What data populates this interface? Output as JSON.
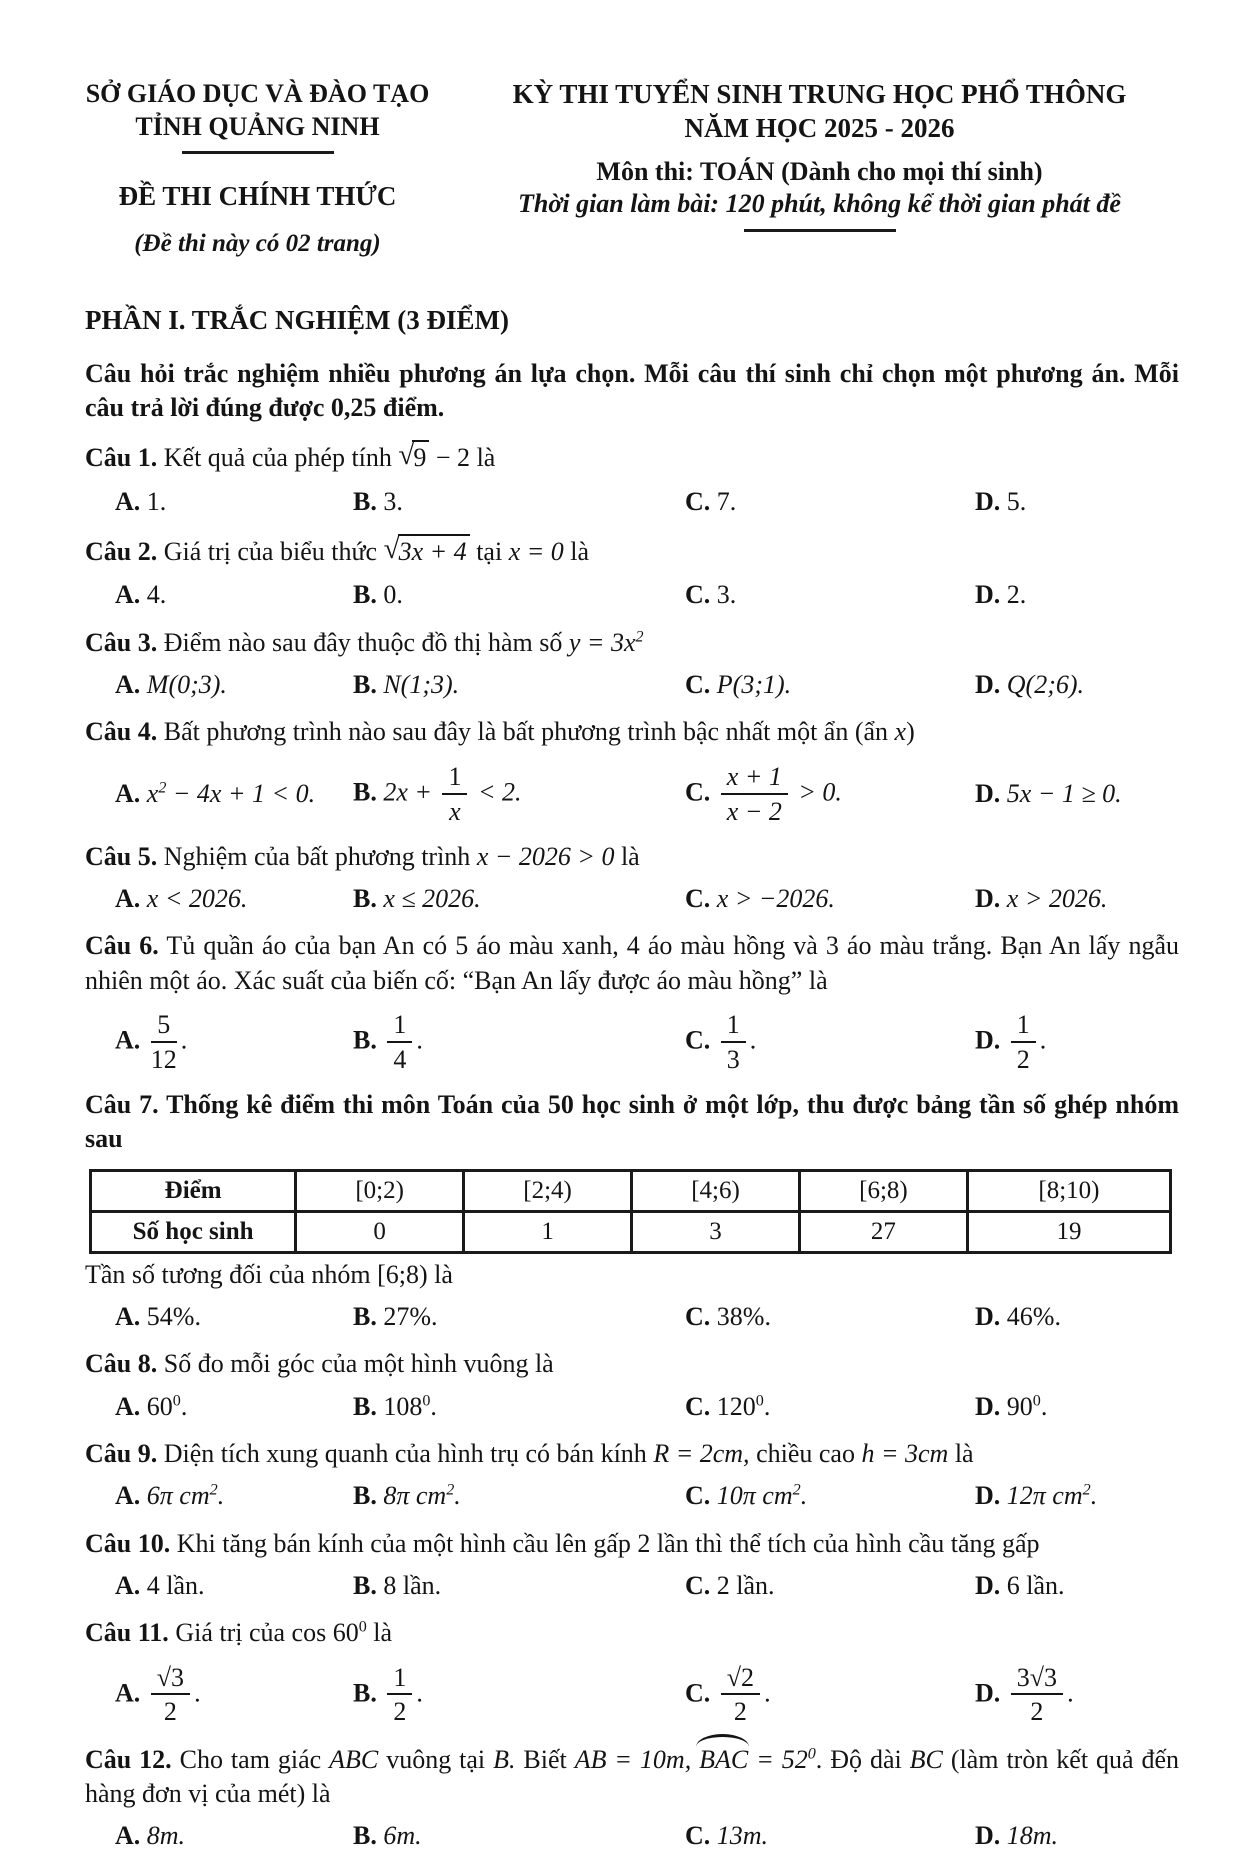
{
  "header": {
    "left": {
      "dept": "SỞ GIÁO DỤC VÀ ĐÀO TẠO",
      "province": "TỈNH QUẢNG NINH",
      "exam_type": "ĐỀ THI CHÍNH THỨC",
      "pages_note": "(Đề thi này có 02 trang)"
    },
    "right": {
      "exam_name": "KỲ THI TUYỂN SINH TRUNG HỌC PHỔ THÔNG",
      "year": "NĂM HỌC 2025 - 2026",
      "subject": "Môn thi: TOÁN (Dành cho mọi thí sinh)",
      "duration": "Thời gian làm bài: 120 phút, không kể thời gian phát đề"
    }
  },
  "section": {
    "title": "PHẦN I. TRẮC NGHIỆM (3 ĐIỂM)",
    "intro": "Câu hỏi trắc nghiệm nhiều phương án lựa chọn. Mỗi câu thí sinh chỉ chọn một phương án. Mỗi câu trả lời đúng được 0,25 điểm."
  },
  "q1": {
    "label": "Câu 1.",
    "t1": "Kết quả của phép tính",
    "rad": "9",
    "t2": "− 2",
    "t3": "là",
    "o": [
      {
        "k": "A.",
        "v": "1."
      },
      {
        "k": "B.",
        "v": "3."
      },
      {
        "k": "C.",
        "v": "7."
      },
      {
        "k": "D.",
        "v": "5."
      }
    ]
  },
  "q2": {
    "label": "Câu 2.",
    "t1": "Giá trị của biểu thức",
    "rad": "3x + 4",
    "t2": "tại",
    "m": "x = 0",
    "t3": "là",
    "o": [
      {
        "k": "A.",
        "v": "4."
      },
      {
        "k": "B.",
        "v": "0."
      },
      {
        "k": "C.",
        "v": "3."
      },
      {
        "k": "D.",
        "v": "2."
      }
    ]
  },
  "q3": {
    "label": "Câu 3.",
    "t1": "Điểm nào sau đây thuộc đồ thị hàm số",
    "m": "y = 3x",
    "sup": "2",
    "o": [
      {
        "k": "A.",
        "v": "M(0;3)."
      },
      {
        "k": "B.",
        "v": "N(1;3)."
      },
      {
        "k": "C.",
        "v": "P(3;1)."
      },
      {
        "k": "D.",
        "v": "Q(2;6)."
      }
    ]
  },
  "q4": {
    "label": "Câu 4.",
    "t1": "Bất phương trình nào sau đây là bất phương trình bậc nhất một ẩn (ẩn",
    "m": "x",
    "t2": ")",
    "o": [
      {
        "k": "A.",
        "pre": "x",
        "sup": "2",
        "post": " − 4x + 1 < 0."
      },
      {
        "k": "B.",
        "pre": "2x + ",
        "n": "1",
        "d": "x",
        "post": " < 2."
      },
      {
        "k": "C.",
        "n": "x + 1",
        "d": "x − 2",
        "post": " > 0."
      },
      {
        "k": "D.",
        "v": "5x − 1 ≥ 0."
      }
    ]
  },
  "q5": {
    "label": "Câu 5.",
    "t1": "Nghiệm của bất phương trình",
    "m": "x − 2026 > 0",
    "t2": "là",
    "o": [
      {
        "k": "A.",
        "v": "x < 2026."
      },
      {
        "k": "B.",
        "v": "x ≤ 2026."
      },
      {
        "k": "C.",
        "v": "x > −2026."
      },
      {
        "k": "D.",
        "v": "x > 2026."
      }
    ]
  },
  "q6": {
    "label": "Câu 6.",
    "t1": "Tủ quần áo của bạn An có 5 áo màu xanh, 4 áo màu hồng và 3 áo màu trắng. Bạn An lấy ngẫu nhiên một áo. Xác suất của biến cố: “Bạn An lấy được áo màu hồng” là",
    "o": [
      {
        "k": "A.",
        "n": "5",
        "d": "12",
        "s": "."
      },
      {
        "k": "B.",
        "n": "1",
        "d": "4",
        "s": "."
      },
      {
        "k": "C.",
        "n": "1",
        "d": "3",
        "s": "."
      },
      {
        "k": "D.",
        "n": "1",
        "d": "2",
        "s": "."
      }
    ]
  },
  "q7": {
    "label": "Câu 7.",
    "t1": "Thống kê điểm thi môn Toán của 50 học sinh ở một lớp, thu được bảng tần số ghép nhóm sau",
    "after": "Tần số tương đối của nhóm [6;8) là",
    "o": [
      {
        "k": "A.",
        "v": "54%."
      },
      {
        "k": "B.",
        "v": "27%."
      },
      {
        "k": "C.",
        "v": "38%."
      },
      {
        "k": "D.",
        "v": "46%."
      }
    ]
  },
  "table": {
    "headers": [
      "Điểm",
      "[0;2)",
      "[2;4)",
      "[4;6)",
      "[6;8)",
      "[8;10)"
    ],
    "row": [
      "Số học sinh",
      "0",
      "1",
      "3",
      "27",
      "19"
    ]
  },
  "q8": {
    "label": "Câu 8.",
    "t1": "Số đo mỗi góc của một hình vuông là",
    "o": [
      {
        "k": "A.",
        "b": "60",
        "sup": "0",
        "s": "."
      },
      {
        "k": "B.",
        "b": "108",
        "sup": "0",
        "s": "."
      },
      {
        "k": "C.",
        "b": "120",
        "sup": "0",
        "s": "."
      },
      {
        "k": "D.",
        "b": "90",
        "sup": "0",
        "s": "."
      }
    ]
  },
  "q9": {
    "label": "Câu 9.",
    "t1": "Diện tích xung quanh của hình trụ có bán kính",
    "m1": "R = 2cm,",
    "t2": "chiều cao",
    "m2": "h = 3cm",
    "t3": "là",
    "o": [
      {
        "k": "A.",
        "b": "6π cm",
        "sup": "2",
        "s": "."
      },
      {
        "k": "B.",
        "b": "8π cm",
        "sup": "2",
        "s": "."
      },
      {
        "k": "C.",
        "b": "10π cm",
        "sup": "2",
        "s": "."
      },
      {
        "k": "D.",
        "b": "12π cm",
        "sup": "2",
        "s": "."
      }
    ]
  },
  "q10": {
    "label": "Câu 10.",
    "t1": "Khi tăng bán kính của một hình cầu lên gấp 2 lần thì thể tích của hình cầu tăng gấp",
    "o": [
      {
        "k": "A.",
        "v": "4 lần."
      },
      {
        "k": "B.",
        "v": "8 lần."
      },
      {
        "k": "C.",
        "v": "2 lần."
      },
      {
        "k": "D.",
        "v": "6 lần."
      }
    ]
  },
  "q11": {
    "label": "Câu 11.",
    "t1": "Giá trị của",
    "m": "cos 60",
    "sup": "0",
    "t2": "là",
    "o": [
      {
        "k": "A.",
        "n": "√3",
        "d": "2",
        "s": "."
      },
      {
        "k": "B.",
        "n": "1",
        "d": "2",
        "s": "."
      },
      {
        "k": "C.",
        "n": "√2",
        "d": "2",
        "s": "."
      },
      {
        "k": "D.",
        "n": "3√3",
        "d": "2",
        "s": "."
      }
    ]
  },
  "q12": {
    "label": "Câu 12.",
    "t1": "Cho tam giác",
    "m1": "ABC",
    "t2": "vuông tại",
    "m2": "B.",
    "t3": "Biết",
    "m3": "AB = 10m,",
    "hat": "BAC",
    "m4": "= 52",
    "sup": "0",
    "t4": ". Độ dài",
    "m5": "BC",
    "t5": "(làm tròn kết quả đến hàng đơn vị của mét) là",
    "o": [
      {
        "k": "A.",
        "v": "8m."
      },
      {
        "k": "B.",
        "v": "6m."
      },
      {
        "k": "C.",
        "v": "13m."
      },
      {
        "k": "D.",
        "v": "18m."
      }
    ]
  }
}
